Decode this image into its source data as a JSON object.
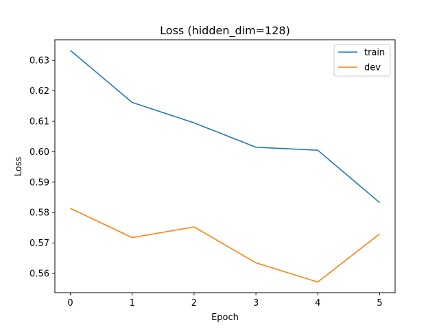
{
  "chart_data": {
    "type": "line",
    "title": "Loss (hidden_dim=128)",
    "xlabel": "Epoch",
    "ylabel": "Loss",
    "x": [
      0,
      1,
      2,
      3,
      4,
      5
    ],
    "xlim": [
      -0.25,
      5.25
    ],
    "ylim": [
      0.5537,
      0.6368
    ],
    "xticks": [
      0,
      1,
      2,
      3,
      4,
      5
    ],
    "yticks": [
      0.56,
      0.57,
      0.58,
      0.59,
      0.6,
      0.61,
      0.62,
      0.63
    ],
    "ytick_labels": [
      "0.56",
      "0.57",
      "0.58",
      "0.59",
      "0.60",
      "0.61",
      "0.62",
      "0.63"
    ],
    "grid": false,
    "legend_position": "top-right",
    "series": [
      {
        "name": "train",
        "color": "#1f77b4",
        "values": [
          0.6333,
          0.6162,
          0.6095,
          0.6015,
          0.6005,
          0.5833
        ]
      },
      {
        "name": "dev",
        "color": "#ff7f0e",
        "values": [
          0.5814,
          0.5718,
          0.5753,
          0.5635,
          0.5572,
          0.573
        ]
      }
    ]
  }
}
